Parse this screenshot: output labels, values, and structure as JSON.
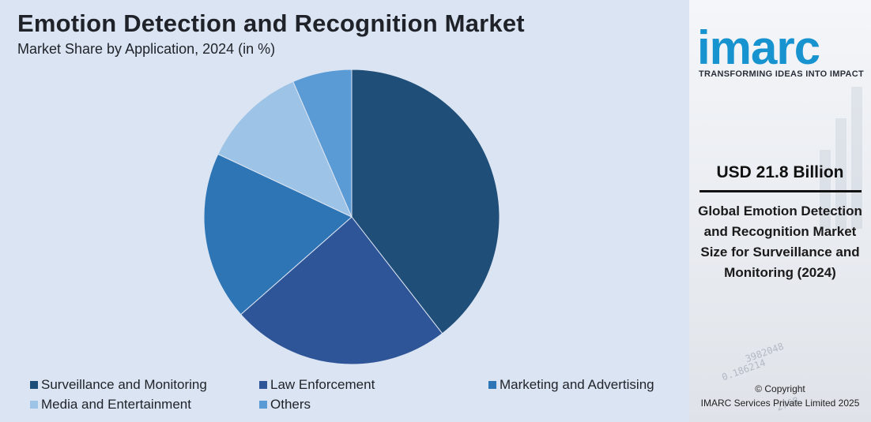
{
  "header": {
    "title": "Emotion Detection and Recognition Market",
    "subtitle": "Market Share by Application, 2024 (in %)"
  },
  "chart_data": {
    "type": "pie",
    "title": "Emotion Detection and Recognition Market",
    "subtitle": "Market Share by Application, 2024 (in %)",
    "categories": [
      "Surveillance and Monitoring",
      "Law Enforcement",
      "Marketing and Advertising",
      "Media and Entertainment",
      "Others"
    ],
    "values": [
      39.5,
      24,
      18.5,
      11.5,
      6.5
    ],
    "colors": [
      "#1f4e79",
      "#2e5597",
      "#2e75b6",
      "#9dc3e6",
      "#5b9bd5"
    ],
    "legend_position": "bottom"
  },
  "sidebar": {
    "brand": "imarc",
    "tagline": "TRANSFORMING IDEAS INTO IMPACT",
    "value": "USD 21.8 Billion",
    "description": "Global Emotion Detection and Recognition Market Size for Surveillance and Monitoring (2024)",
    "copyright_line1": "© Copyright",
    "copyright_line2": "IMARC Services Private Limited 2025"
  }
}
